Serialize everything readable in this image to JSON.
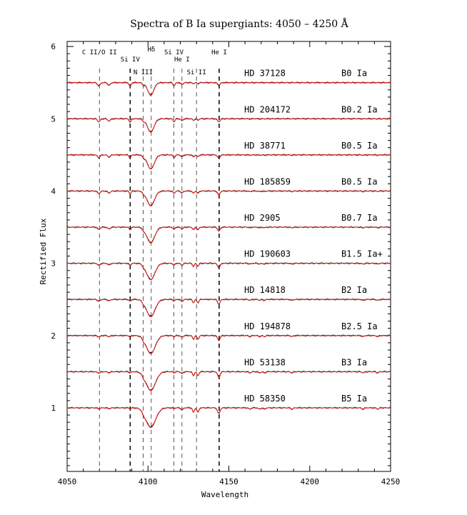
{
  "chart_data": {
    "type": "line",
    "title": "Spectra of B Ia supergiants: 4050 – 4250 Å",
    "xlabel": "Wavelength",
    "ylabel": "Rectified Flux",
    "xlim": [
      4050,
      4250
    ],
    "ylim": [
      0.12,
      6.07
    ],
    "x_ticks": [
      4050,
      4100,
      4150,
      4200,
      4250
    ],
    "y_ticks": [
      1,
      2,
      3,
      4,
      5,
      6
    ],
    "grid": false,
    "line_ids": [
      {
        "label": "C II/O II",
        "wavelength": 4070,
        "row": 1,
        "bold": false
      },
      {
        "label": "Si IV",
        "wavelength": 4089,
        "row": 2,
        "bold": true
      },
      {
        "label": "N III",
        "wavelength": 4097,
        "row": 3,
        "bold": false
      },
      {
        "label": "Hδ",
        "wavelength": 4102,
        "row": 0,
        "bold": false
      },
      {
        "label": "Si IV",
        "wavelength": 4116,
        "row": 1,
        "bold": false
      },
      {
        "label": "He I",
        "wavelength": 4121,
        "row": 2,
        "bold": false
      },
      {
        "label": "Si II",
        "wavelength": 4130,
        "row": 3,
        "bold": false
      },
      {
        "label": "He I",
        "wavelength": 4144,
        "row": 1,
        "bold": true
      }
    ],
    "series": [
      {
        "star": "HD 37128",
        "spectral_type": "B0 Ia",
        "offset": 5.5
      },
      {
        "star": "HD 204172",
        "spectral_type": "B0.2 Ia",
        "offset": 5.0
      },
      {
        "star": "HD 38771",
        "spectral_type": "B0.5 Ia",
        "offset": 4.5
      },
      {
        "star": "HD 185859",
        "spectral_type": "B0.5 Ia",
        "offset": 4.0
      },
      {
        "star": "HD 2905",
        "spectral_type": "B0.7 Ia",
        "offset": 3.5
      },
      {
        "star": "HD 190603",
        "spectral_type": "B1.5 Ia+",
        "offset": 3.0
      },
      {
        "star": "HD 14818",
        "spectral_type": "B2 Ia",
        "offset": 2.5
      },
      {
        "star": "HD 194878",
        "spectral_type": "B2.5 Ia",
        "offset": 2.0
      },
      {
        "star": "HD 53138",
        "spectral_type": "B3 Ia",
        "offset": 1.5
      },
      {
        "star": "HD 58350",
        "spectral_type": "B5 Ia",
        "offset": 1.0
      }
    ],
    "observed_color": "#000000",
    "model_color": "#e0201c",
    "dashed_line_color": "#444444"
  }
}
